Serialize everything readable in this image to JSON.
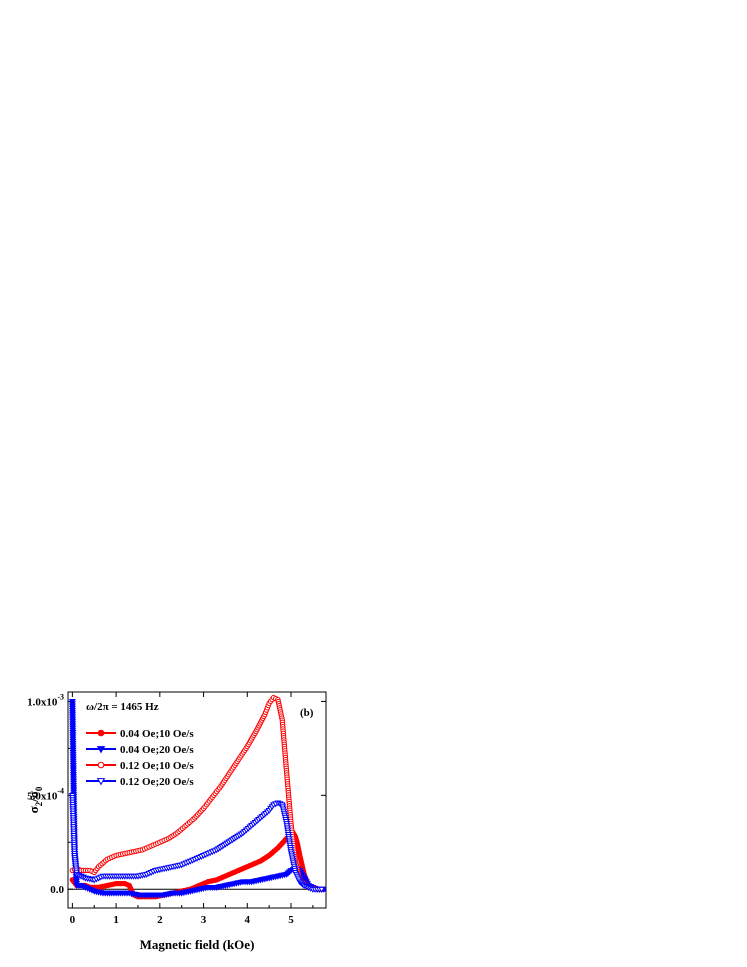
{
  "chart_data": {
    "type": "scatter",
    "xlabel": "Magnetic field (kOe)",
    "ylabel": {
      "base": "σ",
      "sub1": "2",
      "slash": "/",
      "base2": "σ",
      "sub2": "0"
    },
    "xlim": [
      -0.1,
      5.8
    ],
    "ylim": [
      -0.0001,
      0.00105
    ],
    "x_ticks": [
      0,
      1,
      2,
      3,
      4,
      5
    ],
    "y_ticks": [
      {
        "value": 0.0,
        "mantissa": "0.0",
        "exp": ""
      },
      {
        "value": 0.0005,
        "mantissa": "5.0x10",
        "exp": "-4"
      },
      {
        "value": 0.001,
        "mantissa": "1.0x10",
        "exp": "-3"
      }
    ],
    "grid": false,
    "legend_position": "top-left",
    "annotations": {
      "frequency": "ω/2π = 1465 Hz",
      "panel": "(b)"
    },
    "series": [
      {
        "name": "0.04 Oe;10 Oe/s",
        "color": "#ff0000",
        "marker": "circle",
        "filled": true,
        "x": [
          0.0,
          0.1,
          0.2,
          0.3,
          0.4,
          0.6,
          0.8,
          1.0,
          1.2,
          1.3,
          1.4,
          1.5,
          1.7,
          1.9,
          2.1,
          2.3,
          2.5,
          2.7,
          2.9,
          3.1,
          3.3,
          3.5,
          3.7,
          3.9,
          4.1,
          4.3,
          4.5,
          4.7,
          4.9,
          5.0,
          5.05,
          5.1,
          5.15,
          5.2,
          5.3,
          5.4,
          5.6,
          5.8
        ],
        "y": [
          5e-05,
          2e-05,
          2e-05,
          2e-05,
          1e-05,
          1e-05,
          2e-05,
          3e-05,
          3e-05,
          2e-05,
          -3e-05,
          -4e-05,
          -4e-05,
          -4e-05,
          -3e-05,
          -2e-05,
          -1e-05,
          0.0,
          2e-05,
          4e-05,
          5e-05,
          7e-05,
          9e-05,
          0.00011,
          0.00013,
          0.00015,
          0.00018,
          0.00022,
          0.00027,
          0.00029,
          0.0003,
          0.00028,
          0.00024,
          0.00018,
          8e-05,
          2e-05,
          0.0,
          0.0
        ]
      },
      {
        "name": "0.04 Oe;20 Oe/s",
        "color": "#0000ff",
        "marker": "triangle-down",
        "filled": true,
        "x": [
          0.0,
          0.05,
          0.1,
          0.2,
          0.3,
          0.5,
          0.7,
          0.9,
          1.1,
          1.3,
          1.5,
          1.7,
          1.9,
          2.1,
          2.3,
          2.5,
          2.7,
          2.9,
          3.1,
          3.3,
          3.5,
          3.7,
          3.9,
          4.1,
          4.3,
          4.5,
          4.7,
          4.9,
          5.0,
          5.1,
          5.15,
          5.2,
          5.3,
          5.4,
          5.6,
          5.8
        ],
        "y": [
          0.001,
          0.0002,
          2e-05,
          2e-05,
          1e-05,
          -1e-05,
          -2e-05,
          -2e-05,
          -2e-05,
          -2e-05,
          -3e-05,
          -3e-05,
          -3e-05,
          -3e-05,
          -2e-05,
          -2e-05,
          -1e-05,
          0.0,
          1e-05,
          1e-05,
          2e-05,
          3e-05,
          4e-05,
          4e-05,
          5e-05,
          6e-05,
          7e-05,
          8e-05,
          0.0001,
          0.00011,
          0.00011,
          0.0001,
          6e-05,
          2e-05,
          0.0,
          0.0
        ]
      },
      {
        "name": "0.12 Oe;10 Oe/s",
        "color": "#ff0000",
        "marker": "circle",
        "filled": false,
        "x": [
          0.0,
          0.1,
          0.2,
          0.3,
          0.4,
          0.5,
          0.6,
          0.8,
          1.0,
          1.2,
          1.4,
          1.6,
          1.8,
          2.0,
          2.2,
          2.4,
          2.6,
          2.8,
          3.0,
          3.2,
          3.4,
          3.6,
          3.8,
          4.0,
          4.2,
          4.4,
          4.5,
          4.6,
          4.7,
          4.8,
          4.9,
          5.0,
          5.1,
          5.2,
          5.4,
          5.6
        ],
        "y": [
          0.0001,
          0.00011,
          0.0001,
          0.0001,
          0.0001,
          9e-05,
          0.00012,
          0.00016,
          0.00018,
          0.00019,
          0.0002,
          0.00021,
          0.00023,
          0.00025,
          0.00027,
          0.0003,
          0.00034,
          0.00038,
          0.00043,
          0.00049,
          0.00055,
          0.00062,
          0.00069,
          0.00076,
          0.00084,
          0.00093,
          0.00099,
          0.00102,
          0.00101,
          0.0009,
          0.00062,
          0.00035,
          0.00015,
          5e-05,
          1e-05,
          0.0
        ]
      },
      {
        "name": "0.12 Oe;20 Oe/s",
        "color": "#0000ff",
        "marker": "triangle-down",
        "filled": false,
        "x": [
          0.0,
          0.05,
          0.1,
          0.2,
          0.3,
          0.5,
          0.7,
          0.9,
          1.1,
          1.3,
          1.5,
          1.7,
          1.9,
          2.1,
          2.3,
          2.5,
          2.7,
          2.9,
          3.1,
          3.3,
          3.5,
          3.7,
          3.9,
          4.1,
          4.3,
          4.5,
          4.6,
          4.7,
          4.8,
          4.9,
          5.0,
          5.1,
          5.2,
          5.3,
          5.5,
          5.7
        ],
        "y": [
          0.0005,
          0.00018,
          8e-05,
          7e-05,
          6e-05,
          5e-05,
          7e-05,
          7e-05,
          7e-05,
          7e-05,
          7e-05,
          8e-05,
          0.0001,
          0.00011,
          0.00012,
          0.00013,
          0.00015,
          0.00017,
          0.00019,
          0.00021,
          0.00024,
          0.00027,
          0.0003,
          0.00034,
          0.00038,
          0.00042,
          0.00045,
          0.00046,
          0.00045,
          0.00035,
          0.0002,
          9e-05,
          4e-05,
          2e-05,
          0.0,
          0.0
        ]
      }
    ]
  }
}
